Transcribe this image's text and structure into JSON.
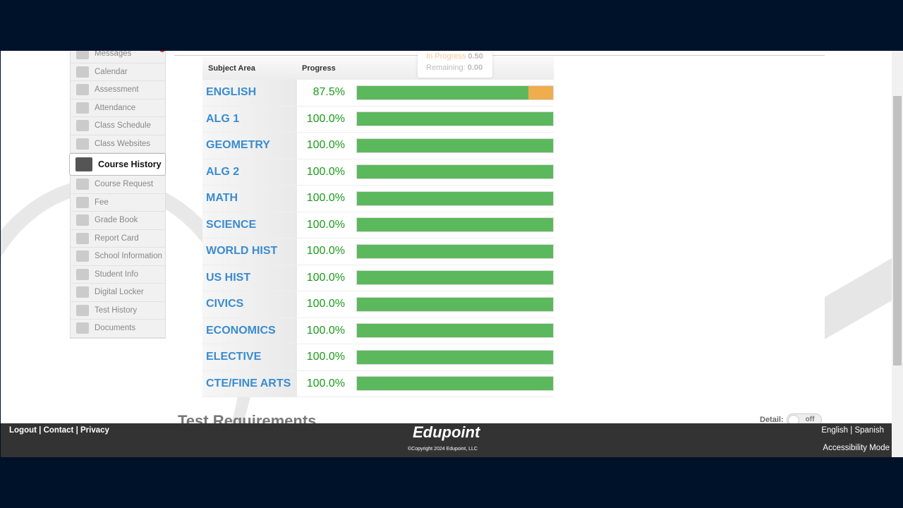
{
  "sidebar": {
    "items": [
      {
        "label": "Messages",
        "icon": "envelope-icon",
        "badge": true
      },
      {
        "label": "Calendar",
        "icon": "calendar-icon"
      },
      {
        "label": "Assessment",
        "icon": "bar-chart-icon"
      },
      {
        "label": "Attendance",
        "icon": "checkbox-icon"
      },
      {
        "label": "Class Schedule",
        "icon": "schedule-icon"
      },
      {
        "label": "Class Websites",
        "icon": "website-icon"
      },
      {
        "label": "Course History",
        "icon": "books-icon",
        "active": true
      },
      {
        "label": "Course Request",
        "icon": "request-icon"
      },
      {
        "label": "Fee",
        "icon": "dollar-icon"
      },
      {
        "label": "Grade Book",
        "icon": "gradebook-icon"
      },
      {
        "label": "Report Card",
        "icon": "report-card-icon"
      },
      {
        "label": "School Information",
        "icon": "school-icon"
      },
      {
        "label": "Student Info",
        "icon": "student-icon"
      },
      {
        "label": "Digital Locker",
        "icon": "lock-icon"
      },
      {
        "label": "Test History",
        "icon": "line-chart-icon"
      },
      {
        "label": "Documents",
        "icon": "document-icon"
      }
    ]
  },
  "table": {
    "headers": [
      "Subject Area",
      "Progress"
    ],
    "rows": [
      {
        "subject": "ENGLISH",
        "progress": "87.5%",
        "value": 87.5
      },
      {
        "subject": "ALG 1",
        "progress": "100.0%",
        "value": 100
      },
      {
        "subject": "GEOMETRY",
        "progress": "100.0%",
        "value": 100
      },
      {
        "subject": "ALG 2",
        "progress": "100.0%",
        "value": 100
      },
      {
        "subject": "MATH",
        "progress": "100.0%",
        "value": 100
      },
      {
        "subject": "SCIENCE",
        "progress": "100.0%",
        "value": 100
      },
      {
        "subject": "WORLD HIST",
        "progress": "100.0%",
        "value": 100
      },
      {
        "subject": "US HIST",
        "progress": "100.0%",
        "value": 100
      },
      {
        "subject": "CIVICS",
        "progress": "100.0%",
        "value": 100
      },
      {
        "subject": "ECONOMICS",
        "progress": "100.0%",
        "value": 100
      },
      {
        "subject": "ELECTIVE",
        "progress": "100.0%",
        "value": 100
      },
      {
        "subject": "CTE/FINE ARTS",
        "progress": "100.0%",
        "value": 100
      }
    ]
  },
  "tooltip": {
    "in_progress_label": "In Progress",
    "in_progress_value": "0.50",
    "remaining_label": "Remaining:",
    "remaining_value": "0.00"
  },
  "section": {
    "title": "Test Requirements",
    "detail_label": "Detail:",
    "toggle_state": "off"
  },
  "footer": {
    "logout": "Logout",
    "contact": "Contact",
    "privacy": "Privacy",
    "logo": "Edupoint",
    "copyright": "©Copyright 2024 Edupoint, LLC",
    "english": "English",
    "spanish": "Spanish",
    "accessibility": "Accessibility Mode"
  },
  "colors": {
    "complete": "#5cb85c",
    "in_progress": "#f0ad4e",
    "subject": "#3a8cd0",
    "percent": "#1a9a1a"
  }
}
